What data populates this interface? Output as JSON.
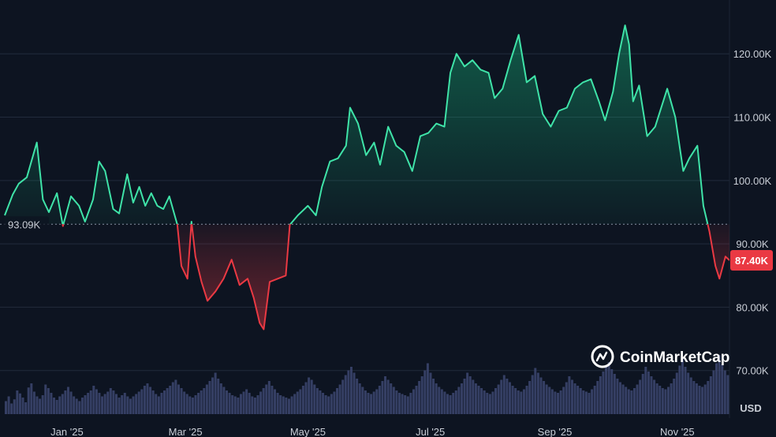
{
  "chart_data": {
    "type": "area",
    "x_ticks": [
      "Jan '25",
      "Mar '25",
      "May '25",
      "Jul '25",
      "Sep '25",
      "Nov '25"
    ],
    "y_ticks": [
      "70.00K",
      "80.00K",
      "90.00K",
      "100.00K",
      "110.00K",
      "120.00K"
    ],
    "y_tick_values": [
      70000,
      80000,
      90000,
      100000,
      110000,
      120000
    ],
    "y_unit": "USD",
    "ylim": [
      59500,
      128500
    ],
    "baseline": {
      "label": "93.09K",
      "value": 93090
    },
    "last_price": {
      "label": "87.40K",
      "value": 87400
    },
    "date_range": [
      "2024-12-01",
      "2025-11-27"
    ],
    "x_tick_dates": [
      "2025-01-01",
      "2025-03-01",
      "2025-05-01",
      "2025-07-01",
      "2025-09-01",
      "2025-11-01"
    ],
    "series": [
      {
        "values": [
          {
            "date": "2024-12-01",
            "price": 94500
          },
          {
            "date": "2024-12-05",
            "price": 97800
          },
          {
            "date": "2024-12-08",
            "price": 99500
          },
          {
            "date": "2024-12-12",
            "price": 100500
          },
          {
            "date": "2024-12-17",
            "price": 106000
          },
          {
            "date": "2024-12-20",
            "price": 97000
          },
          {
            "date": "2024-12-23",
            "price": 95000
          },
          {
            "date": "2024-12-27",
            "price": 98000
          },
          {
            "date": "2024-12-30",
            "price": 92800
          },
          {
            "date": "2025-01-03",
            "price": 97500
          },
          {
            "date": "2025-01-07",
            "price": 96000
          },
          {
            "date": "2025-01-10",
            "price": 93500
          },
          {
            "date": "2025-01-14",
            "price": 97000
          },
          {
            "date": "2025-01-17",
            "price": 103000
          },
          {
            "date": "2025-01-20",
            "price": 101500
          },
          {
            "date": "2025-01-24",
            "price": 95500
          },
          {
            "date": "2025-01-27",
            "price": 94800
          },
          {
            "date": "2025-01-31",
            "price": 101000
          },
          {
            "date": "2025-02-03",
            "price": 96500
          },
          {
            "date": "2025-02-06",
            "price": 99000
          },
          {
            "date": "2025-02-09",
            "price": 96000
          },
          {
            "date": "2025-02-12",
            "price": 98000
          },
          {
            "date": "2025-02-15",
            "price": 96000
          },
          {
            "date": "2025-02-18",
            "price": 95500
          },
          {
            "date": "2025-02-21",
            "price": 97500
          },
          {
            "date": "2025-02-25",
            "price": 93000
          },
          {
            "date": "2025-02-27",
            "price": 86500
          },
          {
            "date": "2025-03-02",
            "price": 84500
          },
          {
            "date": "2025-03-04",
            "price": 93500
          },
          {
            "date": "2025-03-06",
            "price": 88000
          },
          {
            "date": "2025-03-09",
            "price": 84000
          },
          {
            "date": "2025-03-12",
            "price": 81000
          },
          {
            "date": "2025-03-16",
            "price": 82500
          },
          {
            "date": "2025-03-20",
            "price": 84500
          },
          {
            "date": "2025-03-24",
            "price": 87500
          },
          {
            "date": "2025-03-28",
            "price": 83500
          },
          {
            "date": "2025-04-01",
            "price": 84500
          },
          {
            "date": "2025-04-04",
            "price": 81500
          },
          {
            "date": "2025-04-07",
            "price": 77500
          },
          {
            "date": "2025-04-09",
            "price": 76500
          },
          {
            "date": "2025-04-12",
            "price": 84000
          },
          {
            "date": "2025-04-16",
            "price": 84500
          },
          {
            "date": "2025-04-20",
            "price": 85000
          },
          {
            "date": "2025-04-22",
            "price": 93000
          },
          {
            "date": "2025-04-26",
            "price": 94500
          },
          {
            "date": "2025-05-01",
            "price": 96000
          },
          {
            "date": "2025-05-05",
            "price": 94500
          },
          {
            "date": "2025-05-08",
            "price": 99000
          },
          {
            "date": "2025-05-12",
            "price": 103000
          },
          {
            "date": "2025-05-16",
            "price": 103500
          },
          {
            "date": "2025-05-20",
            "price": 105500
          },
          {
            "date": "2025-05-22",
            "price": 111500
          },
          {
            "date": "2025-05-26",
            "price": 109000
          },
          {
            "date": "2025-05-30",
            "price": 104000
          },
          {
            "date": "2025-06-03",
            "price": 106000
          },
          {
            "date": "2025-06-06",
            "price": 102500
          },
          {
            "date": "2025-06-10",
            "price": 108500
          },
          {
            "date": "2025-06-14",
            "price": 105500
          },
          {
            "date": "2025-06-18",
            "price": 104500
          },
          {
            "date": "2025-06-22",
            "price": 101500
          },
          {
            "date": "2025-06-26",
            "price": 107000
          },
          {
            "date": "2025-06-30",
            "price": 107500
          },
          {
            "date": "2025-07-04",
            "price": 109000
          },
          {
            "date": "2025-07-08",
            "price": 108500
          },
          {
            "date": "2025-07-11",
            "price": 117000
          },
          {
            "date": "2025-07-14",
            "price": 120000
          },
          {
            "date": "2025-07-18",
            "price": 118000
          },
          {
            "date": "2025-07-22",
            "price": 119000
          },
          {
            "date": "2025-07-26",
            "price": 117500
          },
          {
            "date": "2025-07-30",
            "price": 117000
          },
          {
            "date": "2025-08-02",
            "price": 113000
          },
          {
            "date": "2025-08-06",
            "price": 114500
          },
          {
            "date": "2025-08-10",
            "price": 119000
          },
          {
            "date": "2025-08-14",
            "price": 123000
          },
          {
            "date": "2025-08-18",
            "price": 115500
          },
          {
            "date": "2025-08-22",
            "price": 116500
          },
          {
            "date": "2025-08-26",
            "price": 110500
          },
          {
            "date": "2025-08-30",
            "price": 108500
          },
          {
            "date": "2025-09-03",
            "price": 111000
          },
          {
            "date": "2025-09-07",
            "price": 111500
          },
          {
            "date": "2025-09-11",
            "price": 114500
          },
          {
            "date": "2025-09-15",
            "price": 115500
          },
          {
            "date": "2025-09-19",
            "price": 116000
          },
          {
            "date": "2025-09-23",
            "price": 112500
          },
          {
            "date": "2025-09-26",
            "price": 109500
          },
          {
            "date": "2025-09-30",
            "price": 114000
          },
          {
            "date": "2025-10-03",
            "price": 120000
          },
          {
            "date": "2025-10-06",
            "price": 124500
          },
          {
            "date": "2025-10-08",
            "price": 121500
          },
          {
            "date": "2025-10-10",
            "price": 112500
          },
          {
            "date": "2025-10-13",
            "price": 115000
          },
          {
            "date": "2025-10-17",
            "price": 107000
          },
          {
            "date": "2025-10-21",
            "price": 108500
          },
          {
            "date": "2025-10-27",
            "price": 114500
          },
          {
            "date": "2025-10-31",
            "price": 110000
          },
          {
            "date": "2025-11-04",
            "price": 101500
          },
          {
            "date": "2025-11-07",
            "price": 103500
          },
          {
            "date": "2025-11-11",
            "price": 105500
          },
          {
            "date": "2025-11-14",
            "price": 96000
          },
          {
            "date": "2025-11-17",
            "price": 92000
          },
          {
            "date": "2025-11-20",
            "price": 86500
          },
          {
            "date": "2025-11-22",
            "price": 84500
          },
          {
            "date": "2025-11-25",
            "price": 88000
          },
          {
            "date": "2025-11-27",
            "price": 87400
          }
        ]
      }
    ],
    "volume": [
      22,
      30,
      18,
      25,
      40,
      35,
      28,
      20,
      45,
      52,
      38,
      30,
      26,
      32,
      50,
      44,
      36,
      28,
      24,
      30,
      34,
      40,
      46,
      38,
      30,
      26,
      22,
      28,
      32,
      36,
      40,
      48,
      42,
      36,
      30,
      34,
      38,
      44,
      40,
      34,
      28,
      32,
      36,
      30,
      26,
      30,
      34,
      38,
      42,
      48,
      52,
      46,
      40,
      34,
      30,
      36,
      40,
      44,
      48,
      54,
      58,
      50,
      44,
      38,
      34,
      30,
      28,
      32,
      36,
      40,
      44,
      50,
      56,
      62,
      70,
      60,
      52,
      46,
      40,
      36,
      32,
      30,
      28,
      34,
      38,
      42,
      36,
      30,
      28,
      32,
      38,
      44,
      50,
      56,
      48,
      42,
      36,
      32,
      30,
      28,
      26,
      30,
      34,
      38,
      42,
      48,
      54,
      62,
      58,
      50,
      44,
      40,
      36,
      32,
      30,
      34,
      38,
      44,
      50,
      58,
      66,
      74,
      80,
      70,
      60,
      52,
      46,
      40,
      36,
      34,
      38,
      42,
      48,
      56,
      64,
      58,
      52,
      46,
      40,
      36,
      34,
      32,
      30,
      36,
      42,
      48,
      56,
      64,
      74,
      86,
      70,
      60,
      52,
      46,
      42,
      38,
      34,
      32,
      36,
      40,
      46,
      52,
      60,
      70,
      64,
      58,
      52,
      48,
      44,
      40,
      36,
      34,
      38,
      44,
      50,
      58,
      66,
      60,
      54,
      48,
      44,
      40,
      38,
      42,
      48,
      56,
      66,
      78,
      70,
      62,
      56,
      50,
      46,
      42,
      38,
      36,
      40,
      46,
      54,
      64,
      58,
      52,
      48,
      44,
      40,
      38,
      36,
      42,
      48,
      56,
      64,
      72,
      80,
      88,
      76,
      68,
      60,
      54,
      50,
      46,
      42,
      40,
      44,
      50,
      58,
      68,
      80,
      72,
      64,
      58,
      52,
      48,
      44,
      42,
      46,
      52,
      60,
      70,
      82,
      96,
      80,
      70,
      62,
      56,
      52,
      48,
      46,
      50,
      56,
      64,
      74,
      86,
      100,
      84,
      74,
      66
    ]
  },
  "brand": {
    "name": "CoinMarketCap"
  },
  "colors": {
    "up": "#3fe3a8",
    "down": "#ea3943",
    "background": "#0d1421",
    "grid": "#222b3c",
    "volume": "#3d4770"
  }
}
